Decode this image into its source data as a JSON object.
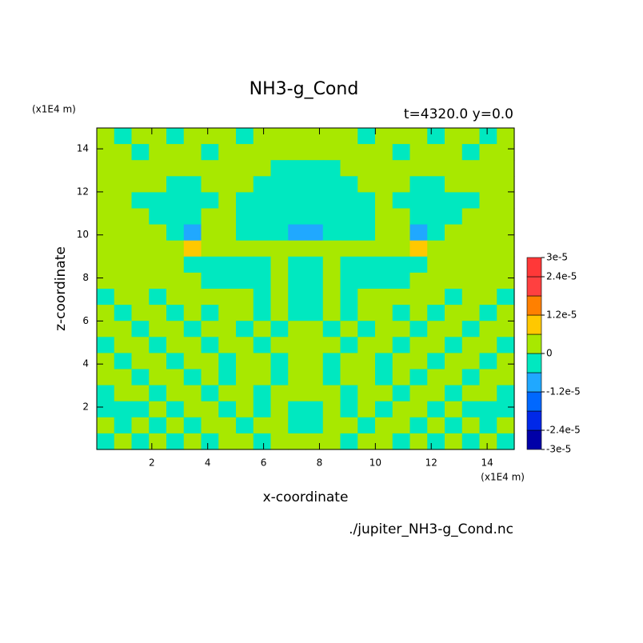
{
  "chart_data": {
    "type": "contour",
    "title": "NH3-g_Cond",
    "subtitle": "t=4320.0 y=0.0",
    "x_label": "x-coordinate",
    "y_label": "z-coordinate",
    "x_unit": "(x1E4 m)",
    "y_unit": "(x1E4 m)",
    "source": "./jupiter_NH3-g_Cond.nc",
    "xlim": [
      0.03,
      14.97
    ],
    "ylim": [
      0.03,
      14.97
    ],
    "xticks": [
      2,
      4,
      6,
      8,
      10,
      12,
      14
    ],
    "yticks": [
      2,
      4,
      6,
      8,
      10,
      12,
      14
    ],
    "levels": [
      -3e-05,
      -2.4e-05,
      -1.8e-05,
      -1.2e-05,
      -6e-06,
      0,
      6e-06,
      1.2e-05,
      1.8e-05,
      2.4e-05,
      3e-05
    ],
    "colors": [
      "#0000a8",
      "#0028e8",
      "#0068ff",
      "#20a8ff",
      "#00e8c0",
      "#a8e800",
      "#ffc800",
      "#ff8000",
      "#ff4040",
      "#ff3838"
    ],
    "colorbar_ticks": [
      {
        "value": 3e-05,
        "label": "3e-5"
      },
      {
        "value": 2.4e-05,
        "label": "2.4e-5"
      },
      {
        "value": 1.2e-05,
        "label": "1.2e-5"
      },
      0,
      {
        "value": -1.2e-05,
        "label": "-1.2e-5"
      },
      {
        "value": -2.4e-05,
        "label": "-2.4e-5"
      },
      {
        "value": -3e-05,
        "label": "-3e-5"
      }
    ],
    "z": [
      [
        3e-06,
        -3e-06,
        3e-06,
        3e-06,
        -3e-06,
        3e-06,
        3e-06,
        3e-06,
        -3e-06,
        3e-06,
        3e-06,
        3e-06,
        3e-06,
        3e-06,
        3e-06,
        -3e-06,
        3e-06,
        3e-06,
        3e-06,
        -3e-06,
        3e-06,
        3e-06,
        -3e-06,
        3e-06
      ],
      [
        3e-06,
        3e-06,
        -3e-06,
        3e-06,
        3e-06,
        3e-06,
        -3e-06,
        3e-06,
        3e-06,
        3e-06,
        3e-06,
        3e-06,
        3e-06,
        3e-06,
        3e-06,
        3e-06,
        3e-06,
        -3e-06,
        3e-06,
        3e-06,
        3e-06,
        -3e-06,
        3e-06,
        3e-06
      ],
      [
        3e-06,
        3e-06,
        3e-06,
        3e-06,
        3e-06,
        3e-06,
        3e-06,
        3e-06,
        3e-06,
        3e-06,
        -3e-06,
        -3e-06,
        -3e-06,
        -3e-06,
        3e-06,
        3e-06,
        3e-06,
        3e-06,
        3e-06,
        3e-06,
        3e-06,
        3e-06,
        3e-06,
        3e-06
      ],
      [
        3e-06,
        3e-06,
        3e-06,
        3e-06,
        -3e-06,
        -3e-06,
        3e-06,
        3e-06,
        3e-06,
        -3e-06,
        -3e-06,
        -3e-06,
        -3e-06,
        -3e-06,
        -3e-06,
        3e-06,
        3e-06,
        3e-06,
        -3e-06,
        -3e-06,
        3e-06,
        3e-06,
        3e-06,
        3e-06
      ],
      [
        3e-06,
        3e-06,
        -3e-06,
        -3e-06,
        -3e-06,
        -3e-06,
        -3e-06,
        3e-06,
        -3e-06,
        -3e-06,
        -3e-06,
        -3e-06,
        -3e-06,
        -3e-06,
        -3e-06,
        -3e-06,
        3e-06,
        -3e-06,
        -3e-06,
        -3e-06,
        -3e-06,
        -3e-06,
        3e-06,
        3e-06
      ],
      [
        3e-06,
        3e-06,
        3e-06,
        -3e-06,
        -3e-06,
        -3e-06,
        3e-06,
        3e-06,
        -3e-06,
        -3e-06,
        -3e-06,
        -3e-06,
        -3e-06,
        -3e-06,
        -3e-06,
        -3e-06,
        3e-06,
        3e-06,
        -3e-06,
        -3e-06,
        -3e-06,
        3e-06,
        3e-06,
        3e-06
      ],
      [
        3e-06,
        3e-06,
        3e-06,
        3e-06,
        -3e-06,
        -9e-06,
        3e-06,
        3e-06,
        -3e-06,
        -3e-06,
        -3e-06,
        -9e-06,
        -9e-06,
        -3e-06,
        -3e-06,
        -3e-06,
        3e-06,
        3e-06,
        -9e-06,
        -3e-06,
        3e-06,
        3e-06,
        3e-06,
        3e-06
      ],
      [
        3e-06,
        3e-06,
        3e-06,
        3e-06,
        3e-06,
        9e-06,
        3e-06,
        3e-06,
        3e-06,
        3e-06,
        3e-06,
        3e-06,
        3e-06,
        3e-06,
        3e-06,
        3e-06,
        3e-06,
        3e-06,
        9e-06,
        3e-06,
        3e-06,
        3e-06,
        3e-06,
        3e-06
      ],
      [
        3e-06,
        3e-06,
        3e-06,
        3e-06,
        3e-06,
        -3e-06,
        -3e-06,
        -3e-06,
        -3e-06,
        -3e-06,
        3e-06,
        -3e-06,
        -3e-06,
        3e-06,
        -3e-06,
        -3e-06,
        -3e-06,
        -3e-06,
        -3e-06,
        3e-06,
        3e-06,
        3e-06,
        3e-06,
        3e-06
      ],
      [
        3e-06,
        3e-06,
        3e-06,
        3e-06,
        3e-06,
        3e-06,
        -3e-06,
        -3e-06,
        -3e-06,
        -3e-06,
        3e-06,
        -3e-06,
        -3e-06,
        3e-06,
        -3e-06,
        -3e-06,
        -3e-06,
        -3e-06,
        3e-06,
        3e-06,
        3e-06,
        3e-06,
        3e-06,
        3e-06
      ],
      [
        -3e-06,
        3e-06,
        3e-06,
        -3e-06,
        3e-06,
        3e-06,
        3e-06,
        3e-06,
        3e-06,
        -3e-06,
        3e-06,
        -3e-06,
        -3e-06,
        3e-06,
        -3e-06,
        3e-06,
        3e-06,
        3e-06,
        3e-06,
        3e-06,
        -3e-06,
        3e-06,
        3e-06,
        -3e-06
      ],
      [
        3e-06,
        -3e-06,
        3e-06,
        3e-06,
        -3e-06,
        3e-06,
        -3e-06,
        3e-06,
        3e-06,
        -3e-06,
        3e-06,
        -3e-06,
        -3e-06,
        3e-06,
        -3e-06,
        3e-06,
        3e-06,
        -3e-06,
        3e-06,
        -3e-06,
        3e-06,
        3e-06,
        -3e-06,
        3e-06
      ],
      [
        3e-06,
        3e-06,
        -3e-06,
        3e-06,
        3e-06,
        -3e-06,
        3e-06,
        3e-06,
        -3e-06,
        3e-06,
        -3e-06,
        3e-06,
        3e-06,
        -3e-06,
        3e-06,
        -3e-06,
        3e-06,
        3e-06,
        -3e-06,
        3e-06,
        3e-06,
        -3e-06,
        3e-06,
        3e-06
      ],
      [
        -3e-06,
        3e-06,
        3e-06,
        -3e-06,
        3e-06,
        3e-06,
        -3e-06,
        3e-06,
        3e-06,
        -3e-06,
        3e-06,
        3e-06,
        3e-06,
        3e-06,
        -3e-06,
        3e-06,
        3e-06,
        -3e-06,
        3e-06,
        3e-06,
        -3e-06,
        3e-06,
        3e-06,
        -3e-06
      ],
      [
        3e-06,
        -3e-06,
        3e-06,
        3e-06,
        -3e-06,
        3e-06,
        3e-06,
        -3e-06,
        3e-06,
        3e-06,
        -3e-06,
        3e-06,
        3e-06,
        -3e-06,
        3e-06,
        3e-06,
        -3e-06,
        3e-06,
        3e-06,
        -3e-06,
        3e-06,
        3e-06,
        -3e-06,
        3e-06
      ],
      [
        3e-06,
        3e-06,
        -3e-06,
        3e-06,
        3e-06,
        -3e-06,
        3e-06,
        -3e-06,
        3e-06,
        3e-06,
        -3e-06,
        3e-06,
        3e-06,
        -3e-06,
        3e-06,
        3e-06,
        -3e-06,
        3e-06,
        -3e-06,
        3e-06,
        3e-06,
        -3e-06,
        3e-06,
        3e-06
      ],
      [
        -3e-06,
        3e-06,
        3e-06,
        -3e-06,
        3e-06,
        3e-06,
        -3e-06,
        3e-06,
        3e-06,
        -3e-06,
        3e-06,
        3e-06,
        3e-06,
        3e-06,
        -3e-06,
        3e-06,
        3e-06,
        -3e-06,
        3e-06,
        3e-06,
        -3e-06,
        3e-06,
        3e-06,
        -3e-06
      ],
      [
        -3e-06,
        -3e-06,
        -3e-06,
        3e-06,
        -3e-06,
        3e-06,
        3e-06,
        -3e-06,
        3e-06,
        -3e-06,
        3e-06,
        -3e-06,
        -3e-06,
        3e-06,
        -3e-06,
        3e-06,
        -3e-06,
        3e-06,
        3e-06,
        -3e-06,
        3e-06,
        -3e-06,
        -3e-06,
        -3e-06
      ],
      [
        3e-06,
        -3e-06,
        3e-06,
        -3e-06,
        3e-06,
        -3e-06,
        3e-06,
        3e-06,
        -3e-06,
        3e-06,
        3e-06,
        -3e-06,
        -3e-06,
        3e-06,
        3e-06,
        -3e-06,
        3e-06,
        3e-06,
        -3e-06,
        3e-06,
        -3e-06,
        3e-06,
        -3e-06,
        3e-06
      ],
      [
        -3e-06,
        3e-06,
        -3e-06,
        3e-06,
        -3e-06,
        3e-06,
        -3e-06,
        3e-06,
        3e-06,
        -3e-06,
        3e-06,
        3e-06,
        3e-06,
        3e-06,
        -3e-06,
        3e-06,
        3e-06,
        -3e-06,
        3e-06,
        -3e-06,
        3e-06,
        -3e-06,
        3e-06,
        -3e-06
      ]
    ]
  }
}
